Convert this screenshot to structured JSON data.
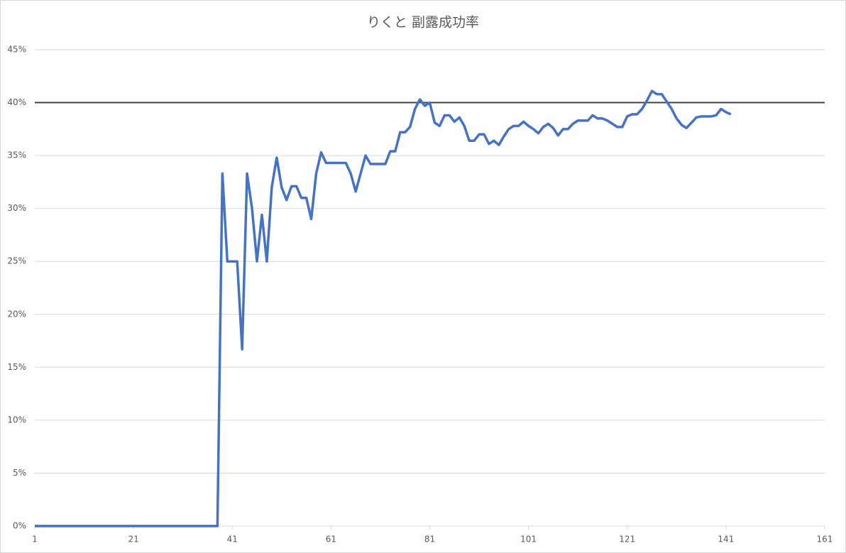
{
  "chart_data": {
    "type": "line",
    "title": "りくと 副露成功率",
    "x": [
      1,
      2,
      3,
      4,
      5,
      6,
      7,
      8,
      9,
      10,
      11,
      12,
      13,
      14,
      15,
      16,
      17,
      18,
      19,
      20,
      21,
      22,
      23,
      24,
      25,
      26,
      27,
      28,
      29,
      30,
      31,
      32,
      33,
      34,
      35,
      36,
      37,
      38,
      39,
      40,
      41,
      42,
      43,
      44,
      45,
      46,
      47,
      48,
      49,
      50,
      51,
      52,
      53,
      54,
      55,
      56,
      57,
      58,
      59,
      60,
      61,
      62,
      63,
      64,
      65,
      66,
      67,
      68,
      69,
      70,
      71,
      72,
      73,
      74,
      75,
      76,
      77,
      78,
      79,
      80,
      81,
      82,
      83,
      84,
      85,
      86,
      87,
      88,
      89,
      90,
      91,
      92,
      93,
      94,
      95,
      96,
      97,
      98,
      99,
      100,
      101,
      102,
      103,
      104,
      105,
      106,
      107,
      108,
      109,
      110,
      111,
      112,
      113,
      114,
      115,
      116,
      117,
      118,
      119,
      120,
      121,
      122,
      123,
      124,
      125,
      126,
      127,
      128,
      129,
      130,
      131,
      132,
      133,
      134,
      135,
      136,
      137,
      138,
      139,
      140,
      141,
      142
    ],
    "series": [
      {
        "color": "#4472c4",
        "values": [
          0,
          0,
          0,
          0,
          0,
          0,
          0,
          0,
          0,
          0,
          0,
          0,
          0,
          0,
          0,
          0,
          0,
          0,
          0,
          0,
          0,
          0,
          0,
          0,
          0,
          0,
          0,
          0,
          0,
          0,
          0,
          0,
          0,
          0,
          0,
          0,
          0,
          0,
          33.3,
          25,
          25,
          25,
          16.7,
          33.3,
          30,
          25,
          29.4,
          25,
          32,
          34.8,
          32,
          30.8,
          32.1,
          32.1,
          31,
          31,
          29,
          33.3,
          35.3,
          34.3,
          34.3,
          34.3,
          34.3,
          34.3,
          33.3,
          31.6,
          33.3,
          35,
          34.2,
          34.2,
          34.2,
          34.2,
          35.4,
          35.4,
          37.2,
          37.2,
          37.7,
          39.4,
          40.3,
          39.7,
          40,
          38.1,
          37.8,
          38.8,
          38.8,
          38.2,
          38.6,
          37.8,
          36.4,
          36.4,
          37,
          37,
          36.1,
          36.4,
          36,
          36.8,
          37.5,
          37.8,
          37.8,
          38.2,
          37.8,
          37.5,
          37.1,
          37.7,
          38,
          37.6,
          36.9,
          37.5,
          37.5,
          38,
          38.3,
          38.3,
          38.3,
          38.8,
          38.5,
          38.5,
          38.3,
          38,
          37.7,
          37.7,
          38.7,
          38.9,
          38.9,
          39.4,
          40.2,
          41.1,
          40.8,
          40.8,
          40.1,
          39.4,
          38.5,
          37.9,
          37.6,
          38.1,
          38.6,
          38.7,
          38.7,
          38.7,
          38.8,
          39.4,
          39.1,
          38.9
        ]
      }
    ],
    "reference_line": {
      "value": 40,
      "color": "#404040"
    },
    "xlim": [
      1,
      161
    ],
    "xticks": [
      1,
      21,
      41,
      61,
      81,
      101,
      121,
      141,
      161
    ],
    "ylim": [
      0,
      45
    ],
    "yticks": [
      {
        "value": 0,
        "label": "0%"
      },
      {
        "value": 5,
        "label": "5%"
      },
      {
        "value": 10,
        "label": "10%"
      },
      {
        "value": 15,
        "label": "15%"
      },
      {
        "value": 20,
        "label": "20%"
      },
      {
        "value": 25,
        "label": "25%"
      },
      {
        "value": 30,
        "label": "30%"
      },
      {
        "value": 35,
        "label": "35%"
      },
      {
        "value": 40,
        "label": "40%"
      },
      {
        "value": 45,
        "label": "45%"
      }
    ],
    "grid": true
  }
}
